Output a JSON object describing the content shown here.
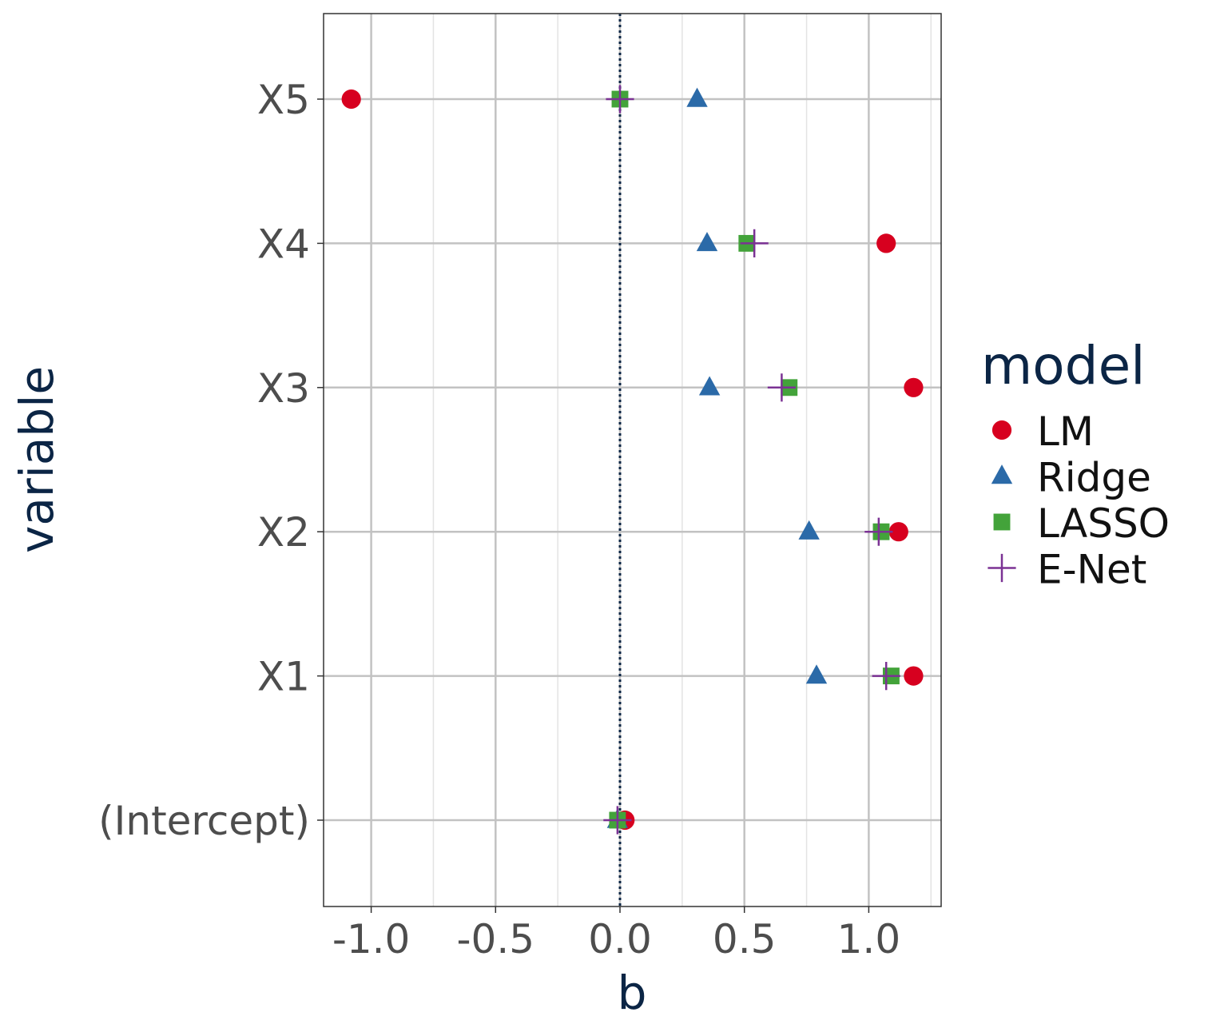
{
  "chart_data": {
    "type": "scatter",
    "xlabel": "b",
    "ylabel": "variable",
    "xlim": [
      -1.2,
      1.3
    ],
    "x_ticks": [
      -1.0,
      -0.5,
      0.0,
      0.5,
      1.0
    ],
    "x_tick_labels": [
      "-1.0",
      "-0.5",
      "0.0",
      "0.5",
      "1.0"
    ],
    "categories": [
      "(Intercept)",
      "X1",
      "X2",
      "X3",
      "X4",
      "X5"
    ],
    "reference_line": {
      "x": 0,
      "style": "dotted"
    },
    "grid": true,
    "legend": {
      "title": "model",
      "position": "right"
    },
    "series": [
      {
        "name": "LM",
        "shape": "circle",
        "color": "#d7001f",
        "values": [
          0.02,
          1.18,
          1.12,
          1.18,
          1.07,
          -1.08
        ]
      },
      {
        "name": "Ridge",
        "shape": "triangle",
        "color": "#2b6aa8",
        "values": [
          -0.01,
          0.79,
          0.76,
          0.36,
          0.35,
          0.31
        ]
      },
      {
        "name": "LASSO",
        "shape": "square",
        "color": "#43a33a",
        "values": [
          -0.01,
          1.09,
          1.05,
          0.68,
          0.51,
          0.0
        ]
      },
      {
        "name": "E-Net",
        "shape": "plus",
        "color": "#7b3294",
        "values": [
          -0.01,
          1.07,
          1.04,
          0.65,
          0.54,
          0.0
        ]
      }
    ]
  }
}
